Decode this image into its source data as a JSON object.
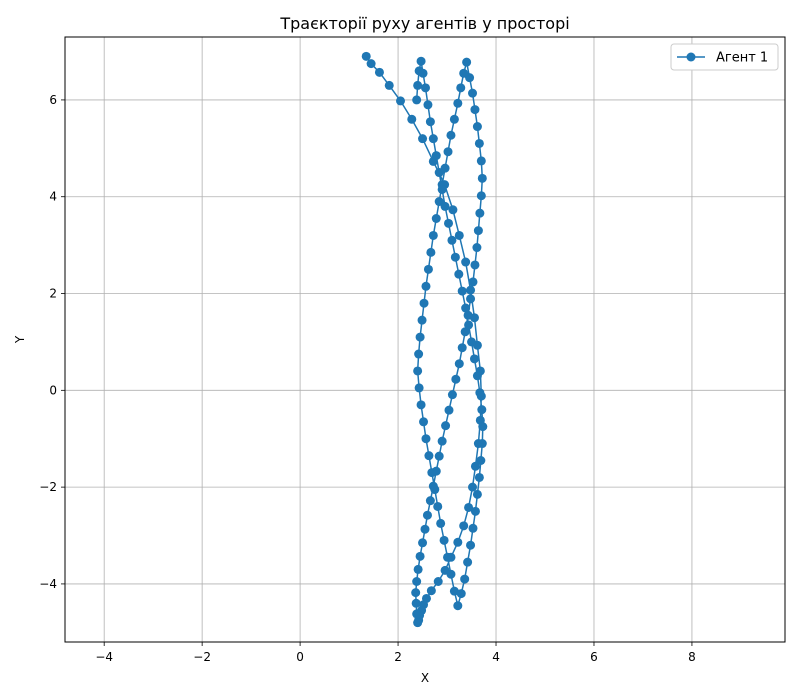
{
  "chart_data": {
    "type": "line",
    "title": "Траєкторії руху агентів у просторі",
    "xlabel": "X",
    "ylabel": "Y",
    "xlim": [
      -4.8,
      9.9
    ],
    "ylim": [
      -5.2,
      7.3
    ],
    "xticks": [
      -4,
      -2,
      0,
      2,
      4,
      6,
      8
    ],
    "yticks": [
      -4,
      -2,
      0,
      2,
      4,
      6
    ],
    "xtick_labels": [
      "−4",
      "−2",
      "0",
      "2",
      "4",
      "6",
      "8"
    ],
    "ytick_labels": [
      "−4",
      "−2",
      "0",
      "2",
      "4",
      "6"
    ],
    "grid": true,
    "legend_position": "top-right",
    "series": [
      {
        "name": "Агент 1",
        "color": "#1f77b4",
        "marker": "circle",
        "x": [
          1.35,
          1.45,
          1.62,
          1.82,
          2.05,
          2.28,
          2.5,
          2.72,
          2.95,
          3.12,
          3.25,
          3.38,
          3.48,
          3.56,
          3.62,
          3.68,
          3.7,
          3.68,
          3.64,
          3.58,
          3.52,
          3.44,
          3.34,
          3.22,
          3.08,
          2.96,
          2.82,
          2.68,
          2.58,
          2.52,
          2.48,
          2.44,
          2.42,
          2.4,
          2.38,
          2.37,
          2.36,
          2.38,
          2.41,
          2.45,
          2.5,
          2.55,
          2.6,
          2.66,
          2.72,
          2.78,
          2.84,
          2.9,
          2.97,
          3.04,
          3.11,
          3.18,
          3.25,
          3.31,
          3.37,
          3.43,
          3.48,
          3.53,
          3.57,
          3.61,
          3.64,
          3.67,
          3.7,
          3.72,
          3.7,
          3.66,
          3.62,
          3.57,
          3.52,
          3.46,
          3.4,
          3.34,
          3.28,
          3.22,
          3.15,
          3.08,
          3.02,
          2.96,
          2.9,
          2.84,
          2.78,
          2.72,
          2.67,
          2.62,
          2.57,
          2.53,
          2.49,
          2.45,
          2.42,
          2.4,
          2.43,
          2.47,
          2.52,
          2.57,
          2.63,
          2.69,
          2.75,
          2.81,
          2.87,
          2.94,
          3.01,
          3.08,
          3.15,
          3.22,
          3.29,
          3.36,
          3.42,
          3.48,
          3.53,
          3.58,
          3.62,
          3.66,
          3.69,
          3.72,
          3.73,
          3.71,
          3.67,
          3.62,
          3.56,
          3.5,
          3.44,
          3.38,
          3.31,
          3.24,
          3.17,
          3.1,
          3.03,
          2.96,
          2.9,
          2.84,
          2.78,
          2.72,
          2.66,
          2.61,
          2.56,
          2.51,
          2.47,
          2.43,
          2.4,
          2.38
        ],
        "y": [
          6.9,
          6.75,
          6.57,
          6.3,
          5.98,
          5.6,
          5.2,
          4.73,
          4.25,
          3.73,
          3.2,
          2.65,
          2.07,
          1.5,
          0.93,
          0.4,
          -0.12,
          -0.62,
          -1.1,
          -1.57,
          -2.0,
          -2.42,
          -2.8,
          -3.14,
          -3.45,
          -3.72,
          -3.95,
          -4.14,
          -4.3,
          -4.43,
          -4.55,
          -4.65,
          -4.75,
          -4.8,
          -4.62,
          -4.4,
          -4.18,
          -3.95,
          -3.7,
          -3.43,
          -3.15,
          -2.87,
          -2.58,
          -2.28,
          -1.98,
          -1.67,
          -1.36,
          -1.05,
          -0.73,
          -0.41,
          -0.09,
          0.23,
          0.55,
          0.88,
          1.21,
          1.55,
          1.89,
          2.24,
          2.59,
          2.95,
          3.3,
          3.66,
          4.02,
          4.38,
          4.74,
          5.1,
          5.45,
          5.8,
          6.14,
          6.46,
          6.78,
          6.55,
          6.25,
          5.93,
          5.6,
          5.27,
          4.93,
          4.59,
          4.25,
          3.9,
          3.55,
          3.2,
          2.85,
          2.5,
          2.15,
          1.8,
          1.45,
          1.1,
          0.75,
          0.4,
          0.05,
          -0.3,
          -0.65,
          -1.0,
          -1.35,
          -1.7,
          -2.05,
          -2.4,
          -2.75,
          -3.1,
          -3.45,
          -3.8,
          -4.15,
          -4.45,
          -4.2,
          -3.9,
          -3.55,
          -3.2,
          -2.85,
          -2.5,
          -2.15,
          -1.8,
          -1.45,
          -1.1,
          -0.75,
          -0.4,
          -0.05,
          0.3,
          0.65,
          1.0,
          1.35,
          1.7,
          2.05,
          2.4,
          2.75,
          3.1,
          3.45,
          3.8,
          4.15,
          4.5,
          4.85,
          5.2,
          5.55,
          5.9,
          6.25,
          6.55,
          6.8,
          6.6,
          6.3,
          6.0
        ]
      }
    ]
  }
}
